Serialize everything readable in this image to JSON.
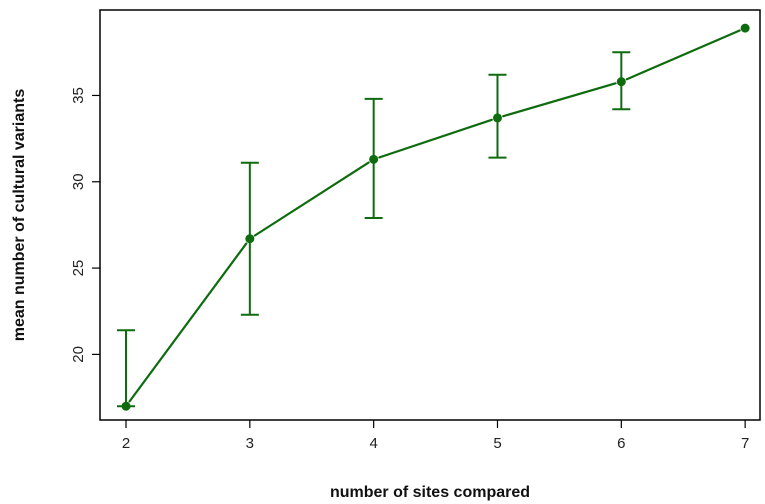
{
  "chart_data": {
    "type": "line",
    "title": "",
    "xlabel": "number of sites compared",
    "ylabel": "mean number of cultural variants",
    "x": [
      2,
      3,
      4,
      5,
      6,
      7
    ],
    "series": [
      {
        "values": [
          17.0,
          26.7,
          31.3,
          33.7,
          35.8,
          38.9
        ],
        "error_low": [
          17.0,
          22.3,
          27.9,
          31.4,
          34.2,
          38.9
        ],
        "error_high": [
          21.4,
          31.1,
          34.8,
          36.2,
          37.5,
          38.9
        ],
        "color": "#0e6b0e",
        "marker": "filled-circle"
      }
    ],
    "xticks": [
      2,
      3,
      4,
      5,
      6,
      7
    ],
    "yticks": [
      20,
      25,
      30,
      35
    ],
    "xlim": [
      1.79,
      7.12
    ],
    "ylim": [
      16.2,
      39.95
    ],
    "grid": false,
    "legend": "none"
  }
}
